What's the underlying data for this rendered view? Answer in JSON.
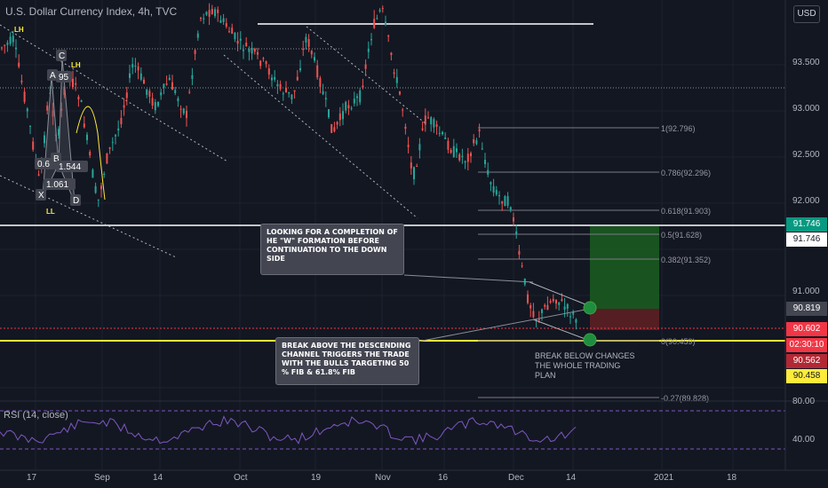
{
  "header": {
    "title": "U.S. Dollar Currency Index, 4h, TVC",
    "currency": "USD"
  },
  "price_axis": {
    "ticks": [
      "93.500",
      "93.000",
      "92.500",
      "92.000",
      "91.000"
    ]
  },
  "time_axis": {
    "ticks": [
      "17",
      "Sep",
      "14",
      "Oct",
      "19",
      "Nov",
      "16",
      "Dec",
      "14",
      "2021",
      "18"
    ]
  },
  "price_tags": [
    {
      "label": "91.746",
      "bg": "#089981",
      "fg": "#ffffff"
    },
    {
      "label": "91.746",
      "bg": "#ffffff",
      "fg": "#131722"
    },
    {
      "label": "90.819",
      "bg": "#434651",
      "fg": "#ffffff"
    },
    {
      "label": "90.602",
      "bg": "#f23645",
      "fg": "#ffffff"
    },
    {
      "label": "02:30:10",
      "bg": "#f23645",
      "fg": "#ffffff"
    },
    {
      "label": "90.562",
      "bg": "#b22833",
      "fg": "#ffffff"
    },
    {
      "label": "90.458",
      "bg": "#ffeb3b",
      "fg": "#131722"
    }
  ],
  "fib_levels": [
    {
      "label": "1(92.796)"
    },
    {
      "label": "0.786(92.296)"
    },
    {
      "label": "0.618(91.903)"
    },
    {
      "label": "0.5(91.628)"
    },
    {
      "label": "0.382(91.352)"
    },
    {
      "label": "0(90.459)"
    },
    {
      "label": "-0.27(89.828)"
    }
  ],
  "pattern_labels": [
    "LH",
    "C",
    "LH",
    "A",
    "95",
    "0.6",
    "B",
    "1.544",
    "1.061",
    "X",
    "D",
    "LL"
  ],
  "callouts": {
    "w_formation": "LOOKING FOR A COMPLETION OF HE \"W\" FORMATION BEFORE CONTINUATION TO THE DOWN SIDE",
    "break_above": "BREAK ABOVE THE DESCENDING CHANNEL TRIGGERS THE TRADE WITH THE BULLS TARGETING 50 % FIB & 61.8% FIB",
    "break_below": "BREAK BELOW CHANGES THE WHOLE TRADING PLAN"
  },
  "rsi": {
    "label": "RSI (14, close)",
    "ticks": [
      "80.00",
      "40.00"
    ]
  },
  "colors": {
    "background": "#131722",
    "bull": "#26a69a",
    "bear": "#ef5350",
    "rsi": "#7e57c2",
    "yellow_line": "#ffeb3b",
    "target_zone": "#1b5e20",
    "stop_zone": "#5d1f24"
  },
  "icons": [
    "green-circle-marker-icon"
  ]
}
